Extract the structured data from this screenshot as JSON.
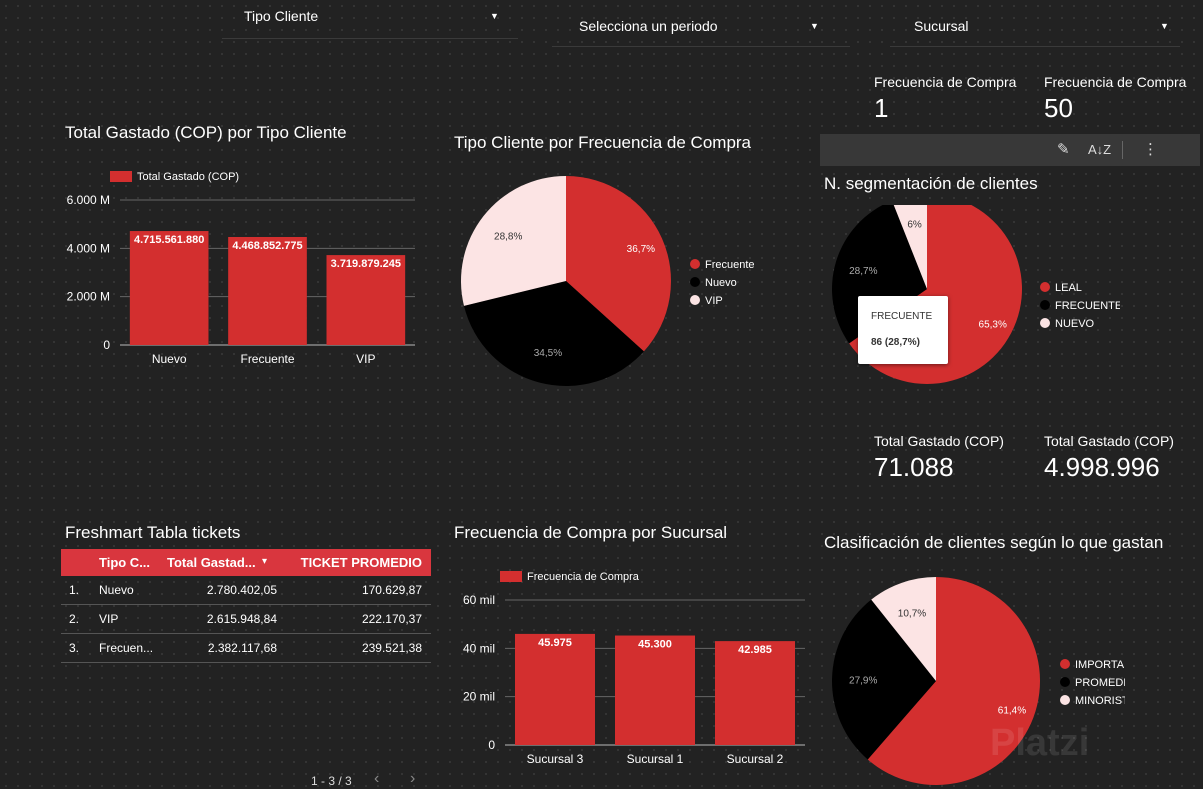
{
  "filters": {
    "tipo_cliente": "Tipo Cliente",
    "periodo": "Selecciona un periodo",
    "sucursal": "Sucursal"
  },
  "scorecards": {
    "freq_min_label": "Frecuencia de Compra",
    "freq_min_value": "1",
    "freq_max_label": "Frecuencia de Compra",
    "freq_max_value": "50",
    "total_min_label": "Total Gastado (COP)",
    "total_min_value": "71.088",
    "total_max_label": "Total Gastado (COP)",
    "total_max_value": "4.998.996"
  },
  "toolbar": {
    "edit_icon": "pencil-icon",
    "sort_icon": "sort-az-icon",
    "menu_icon": "more-vert-icon"
  },
  "tooltip": {
    "label": "FRECUENTE",
    "value": "86 (28,7%)"
  },
  "table": {
    "title": "Freshmart Tabla tickets",
    "headers": [
      "Tipo C...",
      "Total Gastad...",
      "TICKET PROMEDIO"
    ],
    "sort_indicator": "▾",
    "rows": [
      {
        "idx": "1.",
        "tipo": "Nuevo",
        "total": "2.780.402,05",
        "ticket": "170.629,87"
      },
      {
        "idx": "2.",
        "tipo": "VIP",
        "total": "2.615.948,84",
        "ticket": "222.170,37"
      },
      {
        "idx": "3.",
        "tipo": "Frecuen...",
        "total": "2.382.117,68",
        "ticket": "239.521,38"
      }
    ],
    "pagination": "1 - 3 / 3",
    "prev": "‹",
    "next": "›"
  },
  "colors": {
    "red": "#d32f2f",
    "black": "#000000",
    "pink": "#fce4e4",
    "header_red": "#d9363e"
  },
  "watermark": "Platzi",
  "chart_data": [
    {
      "type": "bar",
      "title": "Total Gastado (COP) por Tipo Cliente",
      "series_name": "Total Gastado (COP)",
      "categories": [
        "Nuevo",
        "Frecuente",
        "VIP"
      ],
      "values": [
        4715561880,
        4468852775,
        3719879245
      ],
      "value_labels": [
        "4.715.561.880",
        "4.468.852.775",
        "3.719.879.245"
      ],
      "yticks": [
        0,
        2000000000,
        4000000000,
        6000000000
      ],
      "ytick_labels": [
        "0",
        "2.000 M",
        "4.000 M",
        "6.000 M"
      ],
      "ylim": [
        0,
        6000000000
      ]
    },
    {
      "type": "pie",
      "title": "Tipo Cliente por Frecuencia de Compra",
      "labels": [
        "Frecuente",
        "Nuevo",
        "VIP"
      ],
      "values": [
        36.7,
        34.5,
        28.8
      ],
      "value_labels": [
        "36,7%",
        "34,5%",
        "28,8%"
      ],
      "colors": [
        "#d32f2f",
        "#000000",
        "#fce4e4"
      ]
    },
    {
      "type": "pie",
      "title": "N. segmentación de clientes",
      "labels": [
        "LEAL",
        "FRECUENTE",
        "NUEVO"
      ],
      "values": [
        65.3,
        28.7,
        6
      ],
      "value_labels": [
        "65,3%",
        "28,7%",
        "6%"
      ],
      "colors": [
        "#d32f2f",
        "#000000",
        "#fce4e4"
      ]
    },
    {
      "type": "bar",
      "title": "Frecuencia de Compra por Sucursal",
      "series_name": "Frecuencia de Compra",
      "categories": [
        "Sucursal 3",
        "Sucursal 1",
        "Sucursal 2"
      ],
      "values": [
        45975,
        45300,
        42985
      ],
      "value_labels": [
        "45.975",
        "45.300",
        "42.985"
      ],
      "yticks": [
        0,
        20000,
        40000,
        60000
      ],
      "ytick_labels": [
        "0",
        "20 mil",
        "40 mil",
        "60 mil"
      ],
      "ylim": [
        0,
        60000
      ]
    },
    {
      "type": "pie",
      "title": "Clasificación de clientes según lo que gastan",
      "labels": [
        "IMPORTANTE",
        "PROMEDIO",
        "MINORISTA"
      ],
      "values": [
        61.4,
        27.9,
        10.7
      ],
      "value_labels": [
        "61,4%",
        "27,9%",
        "10,7%"
      ],
      "colors": [
        "#d32f2f",
        "#000000",
        "#fce4e4"
      ]
    }
  ]
}
